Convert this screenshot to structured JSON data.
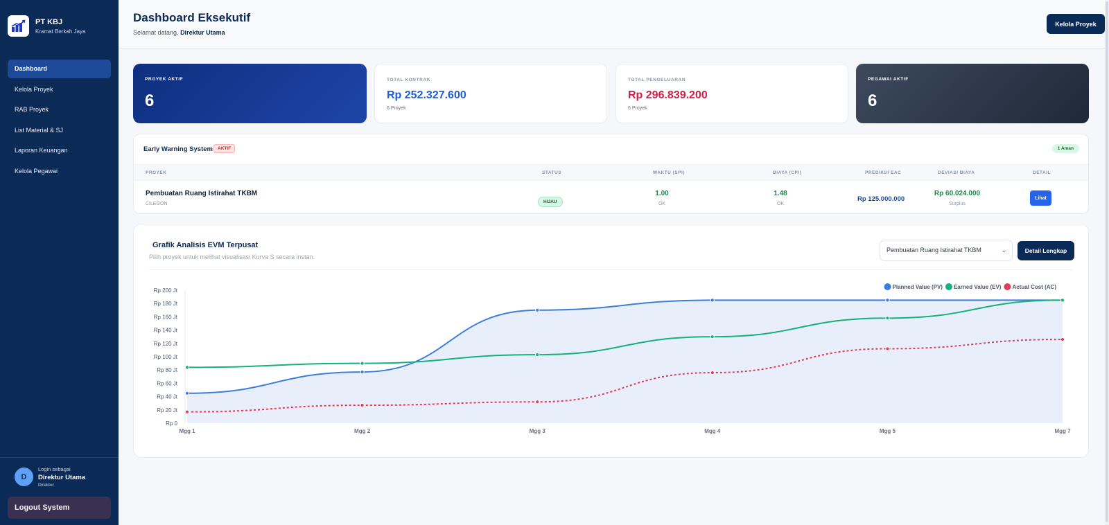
{
  "brand": {
    "name": "PT KBJ",
    "subtitle": "Kramat Berkah Jaya"
  },
  "sidebar": {
    "items": [
      {
        "label": "Dashboard",
        "active": true
      },
      {
        "label": "Kelola Proyek"
      },
      {
        "label": "RAB Proyek"
      },
      {
        "label": "List Material & SJ"
      },
      {
        "label": "Laporan Keuangan"
      },
      {
        "label": "Kelola Pegawai"
      }
    ],
    "user": {
      "caption": "Login sebagai",
      "name": "Direktur Utama",
      "role": "Direktur",
      "initial": "D"
    },
    "logout_label": "Logout System"
  },
  "header": {
    "title": "Dashboard Eksekutif",
    "welcome_prefix": "Selamat datang,",
    "welcome_name": "Direktur Utama",
    "action_label": "Kelola Proyek"
  },
  "stats": {
    "proyek_aktif": {
      "label": "PROYEK AKTIF",
      "value": "6"
    },
    "total_kontrak": {
      "label": "TOTAL KONTRAK",
      "value": "Rp 252.327.600",
      "sub": "6 Proyek"
    },
    "total_pengeluaran": {
      "label": "TOTAL PENGELUARAN",
      "value": "Rp 296.839.200",
      "sub": "6 Proyek"
    },
    "pegawai_aktif": {
      "label": "PEGAWAI AKTIF",
      "value": "6"
    }
  },
  "ews": {
    "title": "Early Warning System",
    "badge": "AKTIF",
    "summary": "1 Aman",
    "columns": {
      "proyek": "PROYEK",
      "status": "STATUS",
      "waktu": "WAKTU (SPI)",
      "biaya": "BIAYA (CPI)",
      "eac": "PREDIKSI EAC",
      "deviasi": "DEVIASI BIAYA",
      "detail": "DETAIL"
    },
    "row": {
      "name": "Pembuatan Ruang Istirahat TKBM",
      "location": "CILEGON",
      "status": "HIJAU",
      "spi": "1.00",
      "spi_note": "OK",
      "cpi": "1.48",
      "cpi_note": "OK",
      "eac": "Rp 125.000.000",
      "deviasi": "Rp 60.024.000",
      "deviasi_note": "Surplus",
      "detail_label": "Lihat"
    }
  },
  "evm": {
    "title": "Grafik Analisis EVM Terpusat",
    "subtitle": "Pilih proyek untuk melihat visualisasi Kurva S secara instan.",
    "selected_project": "Pembuatan Ruang Istirahat TKBM",
    "detail_button": "Detail Lengkap"
  },
  "chart_data": {
    "type": "line",
    "x": [
      "Mgg 1",
      "Mgg 2",
      "Mgg 3",
      "Mgg 4",
      "Mgg 5",
      "Mgg 7"
    ],
    "y_ticks": [
      "Rp 0",
      "Rp 20 Jt",
      "Rp 40 Jt",
      "Rp 60 Jt",
      "Rp 80 Jt",
      "Rp 100 Jt",
      "Rp 120 Jt",
      "Rp 140 Jt",
      "Rp 160 Jt",
      "Rp 180 Jt",
      "Rp 200 Jt"
    ],
    "ylim": [
      0,
      200
    ],
    "y_unit": "Jt",
    "legend_position": "top-right",
    "series": [
      {
        "name": "Planned Value (PV)",
        "color": "#3b7ddd",
        "style": "solid",
        "fill": true,
        "values": [
          45,
          77,
          170,
          185,
          185,
          185
        ]
      },
      {
        "name": "Earned Value (EV)",
        "color": "#16b07a",
        "style": "solid",
        "fill": false,
        "values": [
          84,
          90,
          103,
          130,
          158,
          185
        ]
      },
      {
        "name": "Actual Cost (AC)",
        "color": "#e23b5a",
        "style": "dashed",
        "fill": false,
        "values": [
          17,
          27,
          32,
          76,
          112,
          126
        ]
      }
    ]
  }
}
